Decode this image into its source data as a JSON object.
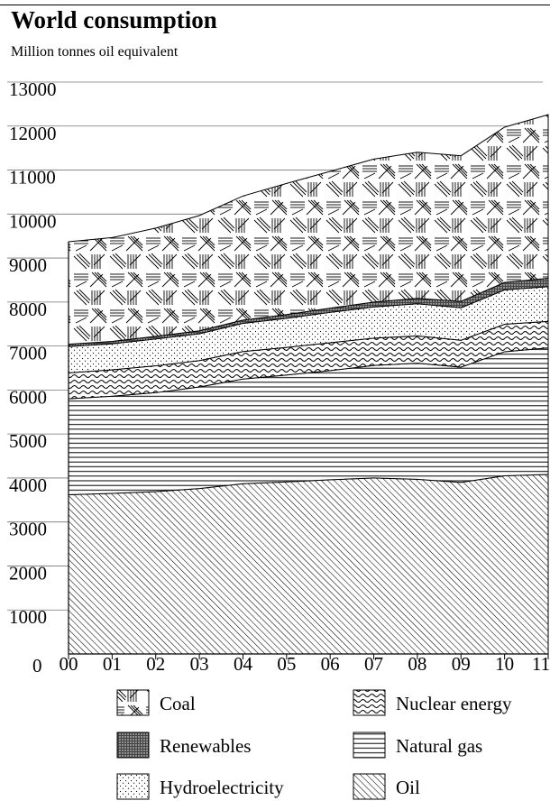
{
  "chart_data": {
    "type": "area",
    "title": "World consumption",
    "subtitle": "Million tonnes oil equivalent",
    "xlabel": "",
    "ylabel": "",
    "stacked": true,
    "x": [
      "00",
      "01",
      "02",
      "03",
      "04",
      "05",
      "06",
      "07",
      "08",
      "09",
      "10",
      "11"
    ],
    "y_ticks": [
      "13000",
      "12000",
      "11000",
      "10000",
      "9000",
      "8000",
      "7000",
      "6000",
      "5000",
      "4000",
      "3000",
      "2000",
      "1000",
      "0"
    ],
    "ylim": [
      0,
      13000
    ],
    "grid": true,
    "legend_placement": "bottom",
    "series": [
      {
        "name": "Oil",
        "pattern": "diagonal-hatch",
        "values": [
          3620,
          3650,
          3690,
          3760,
          3870,
          3910,
          3960,
          4000,
          3970,
          3900,
          4050,
          4080
        ]
      },
      {
        "name": "Natural gas",
        "pattern": "horizontal-lines",
        "values": [
          2180,
          2210,
          2250,
          2310,
          2380,
          2430,
          2480,
          2560,
          2640,
          2620,
          2820,
          2880
        ]
      },
      {
        "name": "Nuclear energy",
        "pattern": "wavy",
        "values": [
          590,
          600,
          610,
          600,
          625,
          630,
          635,
          620,
          620,
          610,
          625,
          600
        ]
      },
      {
        "name": "Hydroelectricity",
        "pattern": "dots",
        "values": [
          600,
          590,
          610,
          610,
          640,
          660,
          690,
          710,
          730,
          740,
          780,
          790
        ]
      },
      {
        "name": "Renewables",
        "pattern": "dense-stipple",
        "values": [
          50,
          55,
          60,
          65,
          75,
          85,
          95,
          110,
          125,
          145,
          170,
          190
        ]
      },
      {
        "name": "Coal",
        "pattern": "crosshatch-blocks",
        "values": [
          2330,
          2360,
          2460,
          2620,
          2820,
          2980,
          3110,
          3250,
          3320,
          3310,
          3530,
          3720
        ]
      }
    ],
    "legend_order": [
      "Coal",
      "Nuclear energy",
      "Renewables",
      "Natural gas",
      "Hydroelectricity",
      "Oil"
    ]
  }
}
